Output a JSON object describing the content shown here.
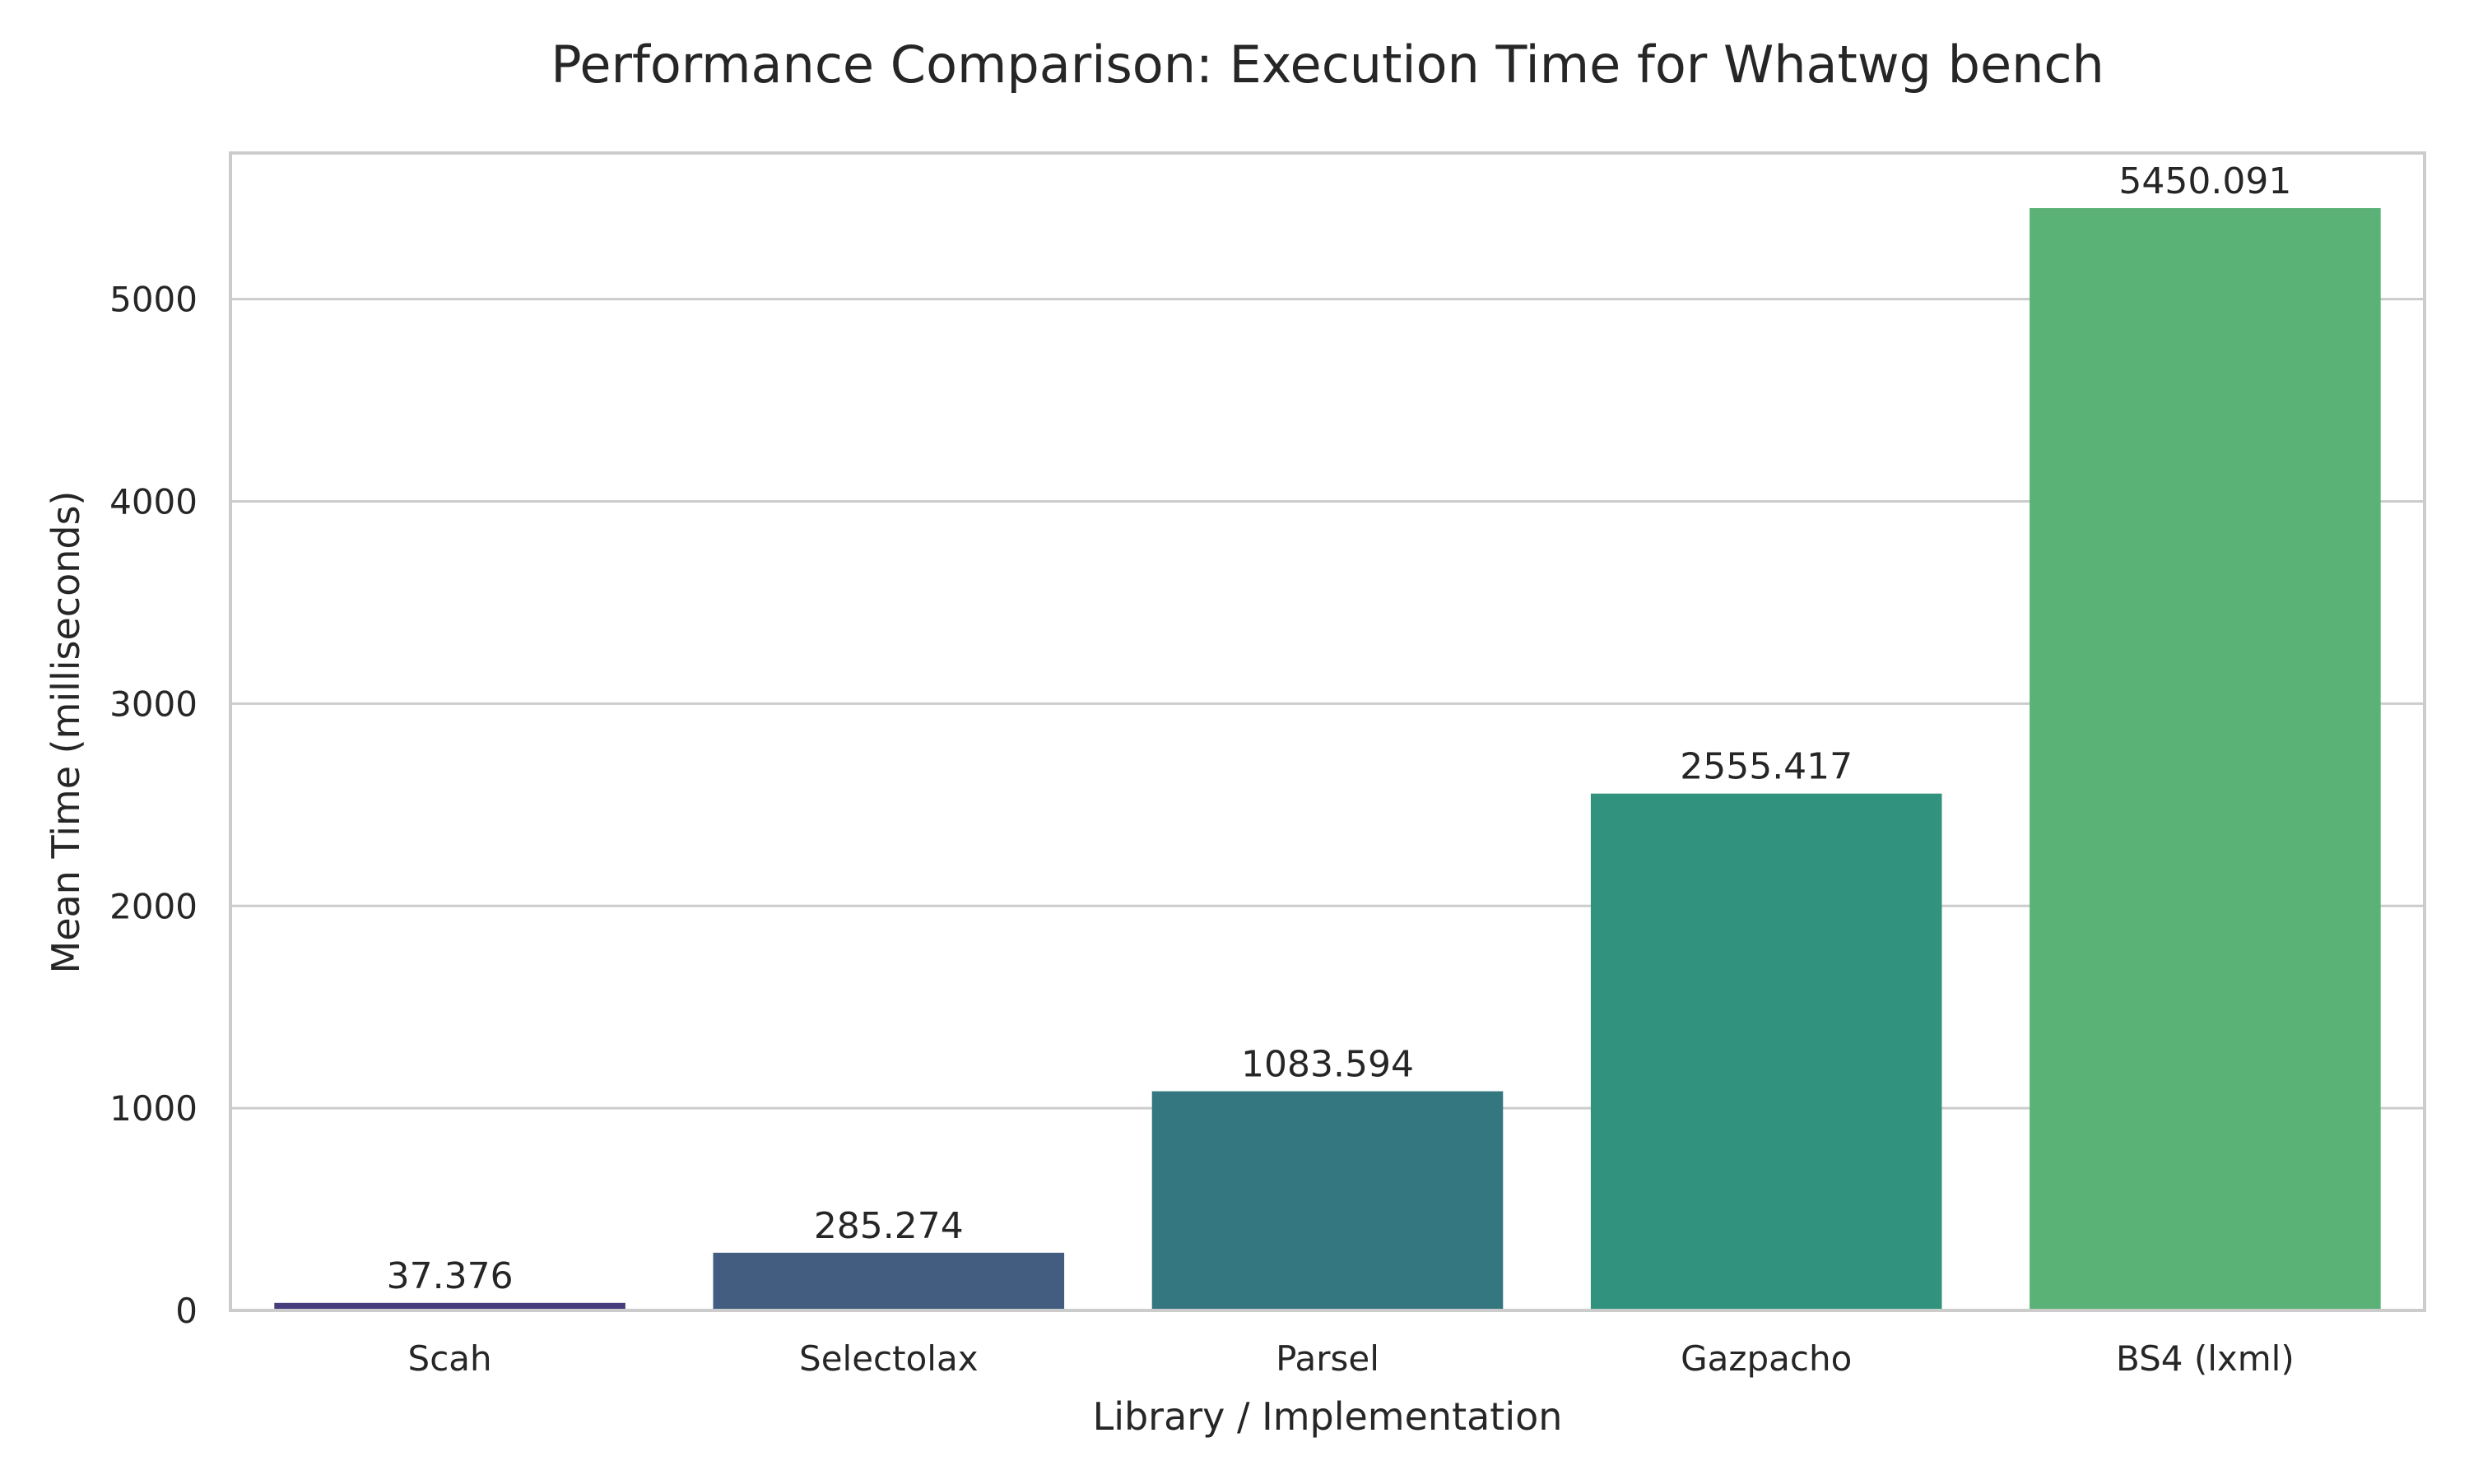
{
  "chart_data": {
    "type": "bar",
    "title": "Performance Comparison: Execution Time for Whatwg bench",
    "xlabel": "Library / Implementation",
    "ylabel": "Mean Time (milliseconds)",
    "categories": [
      "Scah",
      "Selectolax",
      "Parsel",
      "Gazpacho",
      "BS4 (lxml)"
    ],
    "values": [
      37.376,
      285.274,
      1083.594,
      2555.417,
      5450.091
    ],
    "data_labels": [
      "37.376",
      "285.274",
      "1083.594",
      "2555.417",
      "5450.091"
    ],
    "colors": [
      "#483d7c",
      "#425d80",
      "#357780",
      "#31927e",
      "#5ab276"
    ],
    "ylim": [
      0,
      5722.6
    ],
    "yticks": [
      0,
      1000,
      2000,
      3000,
      4000,
      5000
    ],
    "ytick_labels": [
      "0",
      "1000",
      "2000",
      "3000",
      "4000",
      "5000"
    ],
    "grid": "horizontal",
    "legend": "none"
  }
}
